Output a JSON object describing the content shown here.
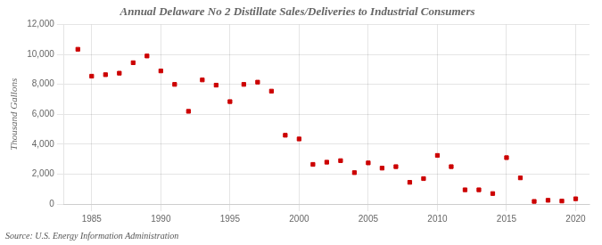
{
  "chart_data": {
    "type": "scatter",
    "title": "Annual Delaware No 2 Distillate Sales/Deliveries to Industrial Consumers",
    "ylabel": "Thousand Gallons",
    "annotations": [
      "Source: U.S. Energy Information Administration"
    ],
    "x": [
      1984,
      1985,
      1986,
      1987,
      1988,
      1989,
      1990,
      1991,
      1992,
      1993,
      1994,
      1995,
      1996,
      1997,
      1998,
      1999,
      2000,
      2001,
      2002,
      2003,
      2004,
      2005,
      2006,
      2007,
      2008,
      2009,
      2010,
      2011,
      2012,
      2013,
      2014,
      2015,
      2016,
      2017,
      2018,
      2019,
      2020
    ],
    "values": [
      10350,
      8550,
      8650,
      8750,
      9450,
      9900,
      8900,
      8000,
      6200,
      8300,
      7950,
      6850,
      8000,
      8150,
      7550,
      4600,
      4350,
      2650,
      2800,
      2900,
      2100,
      2750,
      2400,
      2500,
      1450,
      1700,
      3250,
      2500,
      950,
      950,
      700,
      3100,
      1750,
      175,
      250,
      200,
      350
    ],
    "color": "#cc0000",
    "marker": "square",
    "xlim": [
      1983,
      2021
    ],
    "xticks": [
      1985,
      1990,
      1995,
      2000,
      2005,
      2010,
      2015,
      2020
    ],
    "ylim": [
      0,
      12000
    ],
    "yticks": [
      0,
      {
        "value": 2000,
        "label": "2,000"
      },
      {
        "value": 4000,
        "label": "4,000"
      },
      {
        "value": 6000,
        "label": "6,000"
      },
      {
        "value": 8000,
        "label": "8,000"
      },
      {
        "value": 10000,
        "label": "10,000"
      },
      {
        "value": 12000,
        "label": "12,000"
      }
    ],
    "grid": true
  }
}
